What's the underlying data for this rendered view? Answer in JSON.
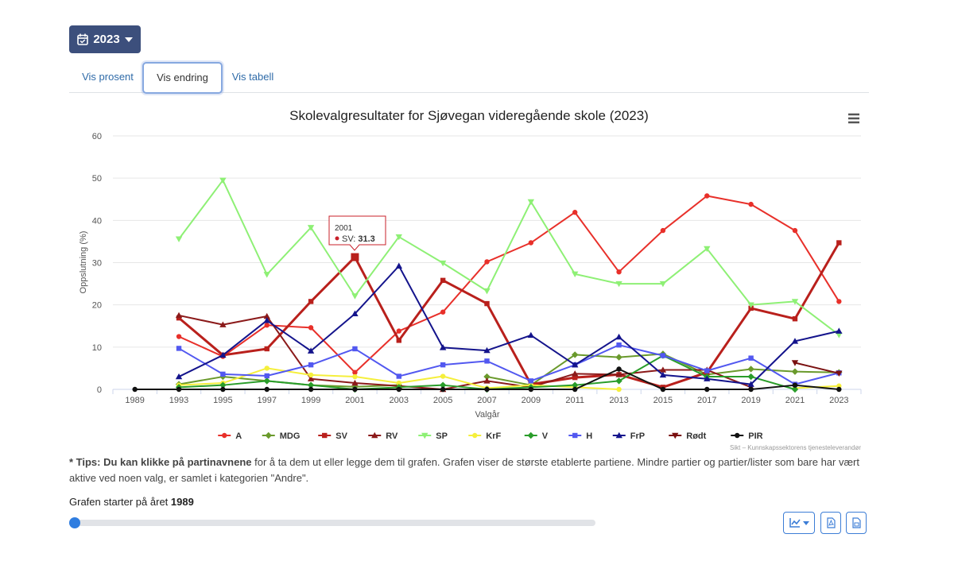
{
  "year_button": {
    "label": "2023"
  },
  "tabs": [
    {
      "label": "Vis prosent"
    },
    {
      "label": "Vis endring"
    },
    {
      "label": "Vis tabell"
    }
  ],
  "chart_data": {
    "type": "line",
    "title": "Skolevalgresultater for Sjøvegan videregående skole (2023)",
    "xlabel": "Valgår",
    "ylabel": "Oppslutning (%)",
    "ylim": [
      0,
      60
    ],
    "yticks": [
      0,
      10,
      20,
      30,
      40,
      50,
      60
    ],
    "x": [
      "1989",
      "1993",
      "1995",
      "1997",
      "1999",
      "2001",
      "2003",
      "2005",
      "2007",
      "2009",
      "2011",
      "2013",
      "2015",
      "2017",
      "2019",
      "2021",
      "2023"
    ],
    "grid": "horizontal",
    "legend_position": "bottom",
    "credits": "Sikt – Kunnskapssektorens tjenesteleverandør",
    "tooltip": {
      "year": "2001",
      "series": "SV",
      "value": "31.3"
    },
    "series": [
      {
        "name": "A",
        "color": "#e8302a",
        "marker": "circle",
        "values": [
          null,
          12.5,
          7.8,
          15.2,
          14.6,
          4.0,
          13.8,
          18.3,
          30.2,
          34.7,
          41.9,
          27.8,
          37.6,
          45.8,
          43.8,
          37.6,
          20.8
        ]
      },
      {
        "name": "MDG",
        "color": "#6a9a2c",
        "marker": "diamond",
        "values": [
          null,
          1.2,
          3.0,
          2.0,
          1.0,
          0.6,
          1.0,
          null,
          3.0,
          1.0,
          8.2,
          7.6,
          8.4,
          3.5,
          4.8,
          4.2,
          4.0
        ]
      },
      {
        "name": "SV",
        "color": "#b9201c",
        "marker": "square",
        "values": [
          null,
          16.9,
          8.1,
          9.6,
          20.8,
          31.3,
          11.6,
          25.8,
          20.3,
          1.2,
          2.8,
          3.5,
          0.5,
          4.0,
          19.2,
          16.7,
          34.7
        ]
      },
      {
        "name": "RV",
        "color": "#8b1a1a",
        "marker": "triangle",
        "values": [
          null,
          17.5,
          15.3,
          17.3,
          2.5,
          1.5,
          0.8,
          0.0,
          2.0,
          0.5,
          3.7,
          3.5,
          4.6,
          4.6,
          0.5,
          null,
          null
        ]
      },
      {
        "name": "SP",
        "color": "#8ef075",
        "marker": "triangle-down",
        "values": [
          null,
          35.6,
          49.5,
          27.2,
          38.3,
          22.1,
          36.1,
          29.9,
          23.3,
          44.4,
          27.3,
          25.0,
          25.0,
          33.3,
          20.0,
          20.8,
          12.9
        ]
      },
      {
        "name": "KrF",
        "color": "#f5ef3c",
        "marker": "circle",
        "values": [
          null,
          1.0,
          1.5,
          5.0,
          3.4,
          3.0,
          1.5,
          3.1,
          0.3,
          1.0,
          0.5,
          0.0,
          null,
          null,
          null,
          0.3,
          0.8
        ]
      },
      {
        "name": "V",
        "color": "#2a9d2a",
        "marker": "diamond",
        "values": [
          null,
          0.5,
          1.0,
          2.0,
          1.0,
          0.0,
          0.5,
          1.0,
          0.0,
          0.5,
          1.0,
          2.0,
          8.0,
          3.0,
          3.0,
          0.0,
          null
        ]
      },
      {
        "name": "H",
        "color": "#5258f0",
        "marker": "square",
        "values": [
          null,
          9.7,
          3.6,
          3.2,
          5.8,
          9.6,
          3.1,
          5.8,
          6.7,
          2.0,
          5.8,
          10.5,
          8.0,
          4.4,
          7.4,
          1.2,
          3.9
        ]
      },
      {
        "name": "FrP",
        "color": "#14148c",
        "marker": "triangle",
        "values": [
          null,
          3.0,
          8.1,
          16.3,
          9.1,
          17.9,
          29.2,
          9.9,
          9.2,
          12.8,
          5.8,
          12.4,
          3.4,
          2.5,
          1.2,
          11.4,
          13.8
        ]
      },
      {
        "name": "Rødt",
        "color": "#7a1010",
        "marker": "triangle-down",
        "values": [
          null,
          null,
          null,
          null,
          null,
          null,
          null,
          null,
          null,
          null,
          null,
          null,
          null,
          null,
          null,
          6.3,
          3.8
        ]
      },
      {
        "name": "PIR",
        "color": "#111111",
        "marker": "circle",
        "values": [
          0.0,
          0.0,
          0.0,
          0.0,
          0.0,
          0.0,
          0.0,
          0.0,
          0.0,
          0.0,
          0.0,
          4.8,
          0.0,
          0.0,
          0.0,
          1.0,
          0.0
        ]
      }
    ]
  },
  "tips": {
    "bold": "* Tips: Du kan klikke på partinavnene",
    "text": " for å ta dem ut eller legge dem til grafen. Grafen viser de største etablerte partiene. Mindre partier og partier/lister som bare har vært aktive ved noen valg, er samlet i kategorien \"Andre\"."
  },
  "slider": {
    "label": "Grafen starter på året",
    "value": "1989"
  },
  "icons": {
    "year_button": "calendar-check-icon",
    "dropdown": "caret-down-icon",
    "menu": "hamburger-menu-icon",
    "chart_type": "line-chart-icon",
    "export_pdf": "pdf-file-icon",
    "export_other": "document-file-icon"
  }
}
